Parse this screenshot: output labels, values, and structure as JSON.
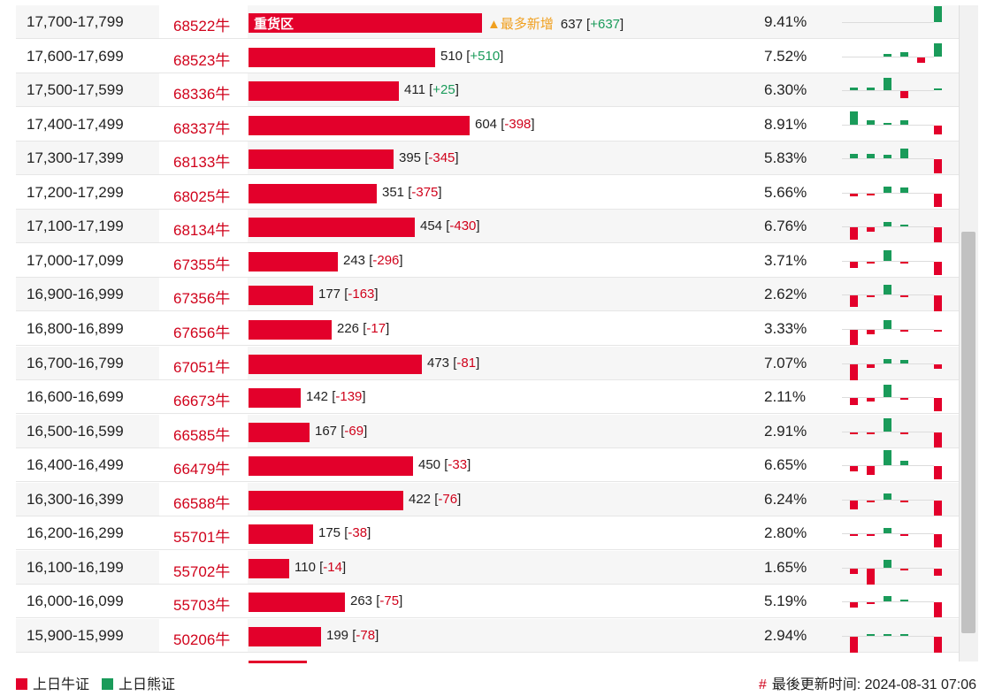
{
  "colors": {
    "bull": "#e3002b",
    "bear": "#1a9b5a",
    "code": "#d0021b",
    "new_high": "#f0a020"
  },
  "rows": [
    {
      "range": "17,700-17,799",
      "code": "68522牛",
      "count": "637",
      "delta": "+637",
      "pct": "9.41%",
      "tag": "重货区",
      "note": "▲最多新增",
      "value": 637,
      "spark": [
        0,
        0,
        0,
        0,
        0,
        1.0
      ]
    },
    {
      "range": "17,600-17,699",
      "code": "68523牛",
      "count": "510",
      "delta": "+510",
      "pct": "7.52%",
      "value": 510,
      "spark": [
        0,
        0,
        0.15,
        0.25,
        -0.35,
        0.85
      ]
    },
    {
      "range": "17,500-17,599",
      "code": "68336牛",
      "count": "411",
      "delta": "+25",
      "pct": "6.30%",
      "value": 411,
      "spark": [
        0.15,
        0.15,
        0.75,
        -0.45,
        0,
        0.1
      ]
    },
    {
      "range": "17,400-17,499",
      "code": "68337牛",
      "count": "604",
      "delta": "-398",
      "pct": "8.91%",
      "value": 604,
      "spark": [
        0.85,
        0.25,
        0.1,
        0.3,
        0,
        -0.55
      ]
    },
    {
      "range": "17,300-17,399",
      "code": "68133牛",
      "count": "395",
      "delta": "-345",
      "pct": "5.83%",
      "value": 395,
      "spark": [
        0.3,
        0.25,
        0.2,
        0.6,
        0,
        -0.9
      ]
    },
    {
      "range": "17,200-17,299",
      "code": "68025牛",
      "count": "351",
      "delta": "-375",
      "pct": "5.66%",
      "value": 351,
      "spark": [
        -0.15,
        -0.1,
        0.4,
        0.35,
        0,
        -0.85
      ]
    },
    {
      "range": "17,100-17,199",
      "code": "68134牛",
      "count": "454",
      "delta": "-430",
      "pct": "6.76%",
      "value": 454,
      "spark": [
        -0.75,
        -0.25,
        0.3,
        0.05,
        0,
        -0.95
      ]
    },
    {
      "range": "17,000-17,099",
      "code": "67355牛",
      "count": "243",
      "delta": "-296",
      "pct": "3.71%",
      "value": 243,
      "spark": [
        -0.4,
        -0.05,
        0.65,
        -0.1,
        0,
        -0.85
      ]
    },
    {
      "range": "16,900-16,999",
      "code": "67356牛",
      "count": "177",
      "delta": "-163",
      "pct": "2.62%",
      "value": 177,
      "spark": [
        -0.7,
        -0.1,
        0.6,
        -0.1,
        0,
        -1.0
      ]
    },
    {
      "range": "16,800-16,899",
      "code": "67656牛",
      "count": "226",
      "delta": "-17",
      "pct": "3.33%",
      "value": 226,
      "spark": [
        -0.95,
        -0.25,
        0.55,
        -0.05,
        0,
        -0.1
      ]
    },
    {
      "range": "16,700-16,799",
      "code": "67051牛",
      "count": "473",
      "delta": "-81",
      "pct": "7.07%",
      "value": 473,
      "spark": [
        -1.0,
        -0.2,
        0.3,
        0.2,
        0,
        -0.3
      ]
    },
    {
      "range": "16,600-16,699",
      "code": "66673牛",
      "count": "142",
      "delta": "-139",
      "pct": "2.11%",
      "value": 142,
      "spark": [
        -0.45,
        -0.2,
        0.8,
        -0.1,
        0,
        -0.85
      ]
    },
    {
      "range": "16,500-16,599",
      "code": "66585牛",
      "count": "167",
      "delta": "-69",
      "pct": "2.91%",
      "value": 167,
      "spark": [
        -0.05,
        -0.05,
        0.85,
        -0.05,
        0,
        -0.95
      ]
    },
    {
      "range": "16,400-16,499",
      "code": "66479牛",
      "count": "450",
      "delta": "-33",
      "pct": "6.65%",
      "value": 450,
      "spark": [
        -0.35,
        -0.55,
        0.95,
        0.3,
        0,
        -0.85
      ]
    },
    {
      "range": "16,300-16,399",
      "code": "66588牛",
      "count": "422",
      "delta": "-76",
      "pct": "6.24%",
      "value": 422,
      "spark": [
        -0.55,
        -0.05,
        0.4,
        -0.05,
        0,
        -0.95
      ]
    },
    {
      "range": "16,200-16,299",
      "code": "55701牛",
      "count": "175",
      "delta": "-38",
      "pct": "2.80%",
      "value": 175,
      "spark": [
        -0.1,
        -0.1,
        0.35,
        -0.05,
        0,
        -0.85
      ]
    },
    {
      "range": "16,100-16,199",
      "code": "55702牛",
      "count": "110",
      "delta": "-14",
      "pct": "1.65%",
      "value": 110,
      "spark": [
        -0.35,
        -1.0,
        0.5,
        -0.1,
        0,
        -0.45
      ]
    },
    {
      "range": "16,000-16,099",
      "code": "55703牛",
      "count": "263",
      "delta": "-75",
      "pct": "5.19%",
      "value": 263,
      "spark": [
        -0.35,
        -0.1,
        0.35,
        0.1,
        0,
        -0.95
      ]
    },
    {
      "range": "15,900-15,999",
      "code": "50206牛",
      "count": "199",
      "delta": "-78",
      "pct": "2.94%",
      "value": 199,
      "spark": [
        -1.0,
        0.05,
        0.05,
        0.05,
        0,
        -1.0
      ]
    }
  ],
  "footer": {
    "legend_bull": "上日牛证",
    "legend_bear": "上日熊证",
    "hash": "#",
    "updated": "最後更新时间: 2024-08-31 07:06"
  }
}
